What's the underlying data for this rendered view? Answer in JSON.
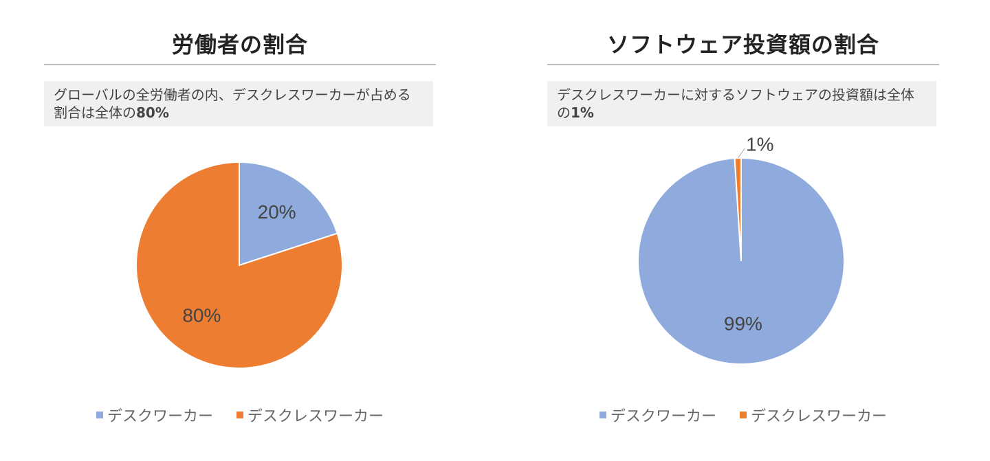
{
  "colors": {
    "desk": "#8faadc",
    "deskless": "#ed7d31"
  },
  "chart_data": [
    {
      "type": "pie",
      "title": "労働者の割合",
      "note": {
        "before": "グローバルの全労働者の内、デスクレスワーカーが占める割合は全体の",
        "value": "80%"
      },
      "categories": [
        "デスクワーカー",
        "デスクレスワーカー"
      ],
      "values": [
        20,
        80
      ],
      "data_labels": [
        "20%",
        "80%"
      ],
      "legend_position": "bottom"
    },
    {
      "type": "pie",
      "title": "ソフトウェア投資額の割合",
      "note": {
        "before": "デスクレスワーカーに対するソフトウェアの投資額は全体の",
        "value": "1%"
      },
      "categories": [
        "デスクワーカー",
        "デスクレスワーカー"
      ],
      "values": [
        99,
        1
      ],
      "data_labels": [
        "99%",
        "1%"
      ],
      "legend_position": "bottom"
    }
  ]
}
